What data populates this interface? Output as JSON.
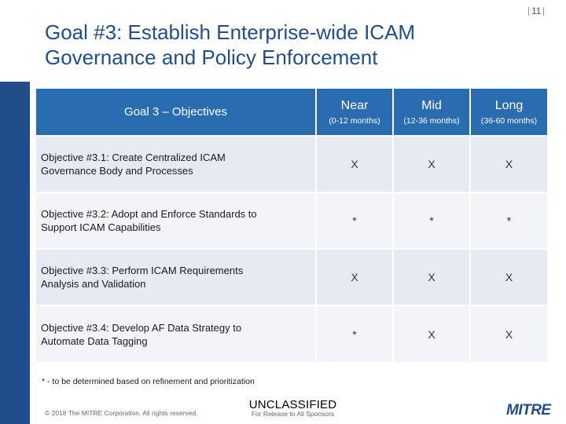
{
  "slide": {
    "number": "11"
  },
  "title": {
    "line1": "Goal #3:  Establish Enterprise-wide ICAM",
    "line2": "Governance and Policy Enforcement"
  },
  "table": {
    "header": {
      "goal_label": "Goal 3 – Objectives",
      "periods": [
        {
          "name": "Near",
          "range": "(0-12 months)"
        },
        {
          "name": "Mid",
          "range": "(12-36 months)"
        },
        {
          "name": "Long",
          "range": "(36-60 months)"
        }
      ]
    },
    "rows": [
      {
        "line1": "Objective #3.1:  Create Centralized ICAM",
        "line2": "Governance Body and Processes",
        "marks": [
          "X",
          "X",
          "X"
        ]
      },
      {
        "line1": "Objective #3.2:  Adopt and Enforce Standards to",
        "line2": "Support ICAM Capabilities",
        "marks": [
          "*",
          "*",
          "*"
        ]
      },
      {
        "line1": "Objective #3.3:  Perform ICAM Requirements",
        "line2": "Analysis and Validation",
        "marks": [
          "X",
          "X",
          "X"
        ]
      },
      {
        "line1": "Objective #3.4:  Develop AF Data Strategy to",
        "line2": "Automate Data Tagging",
        "marks": [
          "*",
          "X",
          "X"
        ]
      }
    ]
  },
  "footnote": "* - to be determined based on refinement and prioritization",
  "footer": {
    "copyright": "© 2018 The MITRE Corporation. All rights reserved.",
    "classification": "UNCLASSIFIED",
    "release": "For Release to All Sponsors",
    "logo_text": "MITRE"
  },
  "colors": {
    "brand_blue": "#1f4e8a",
    "header_blue": "#2a6cb0",
    "row_light": "#e6ebf3",
    "row_lighter": "#f2f4f8"
  }
}
